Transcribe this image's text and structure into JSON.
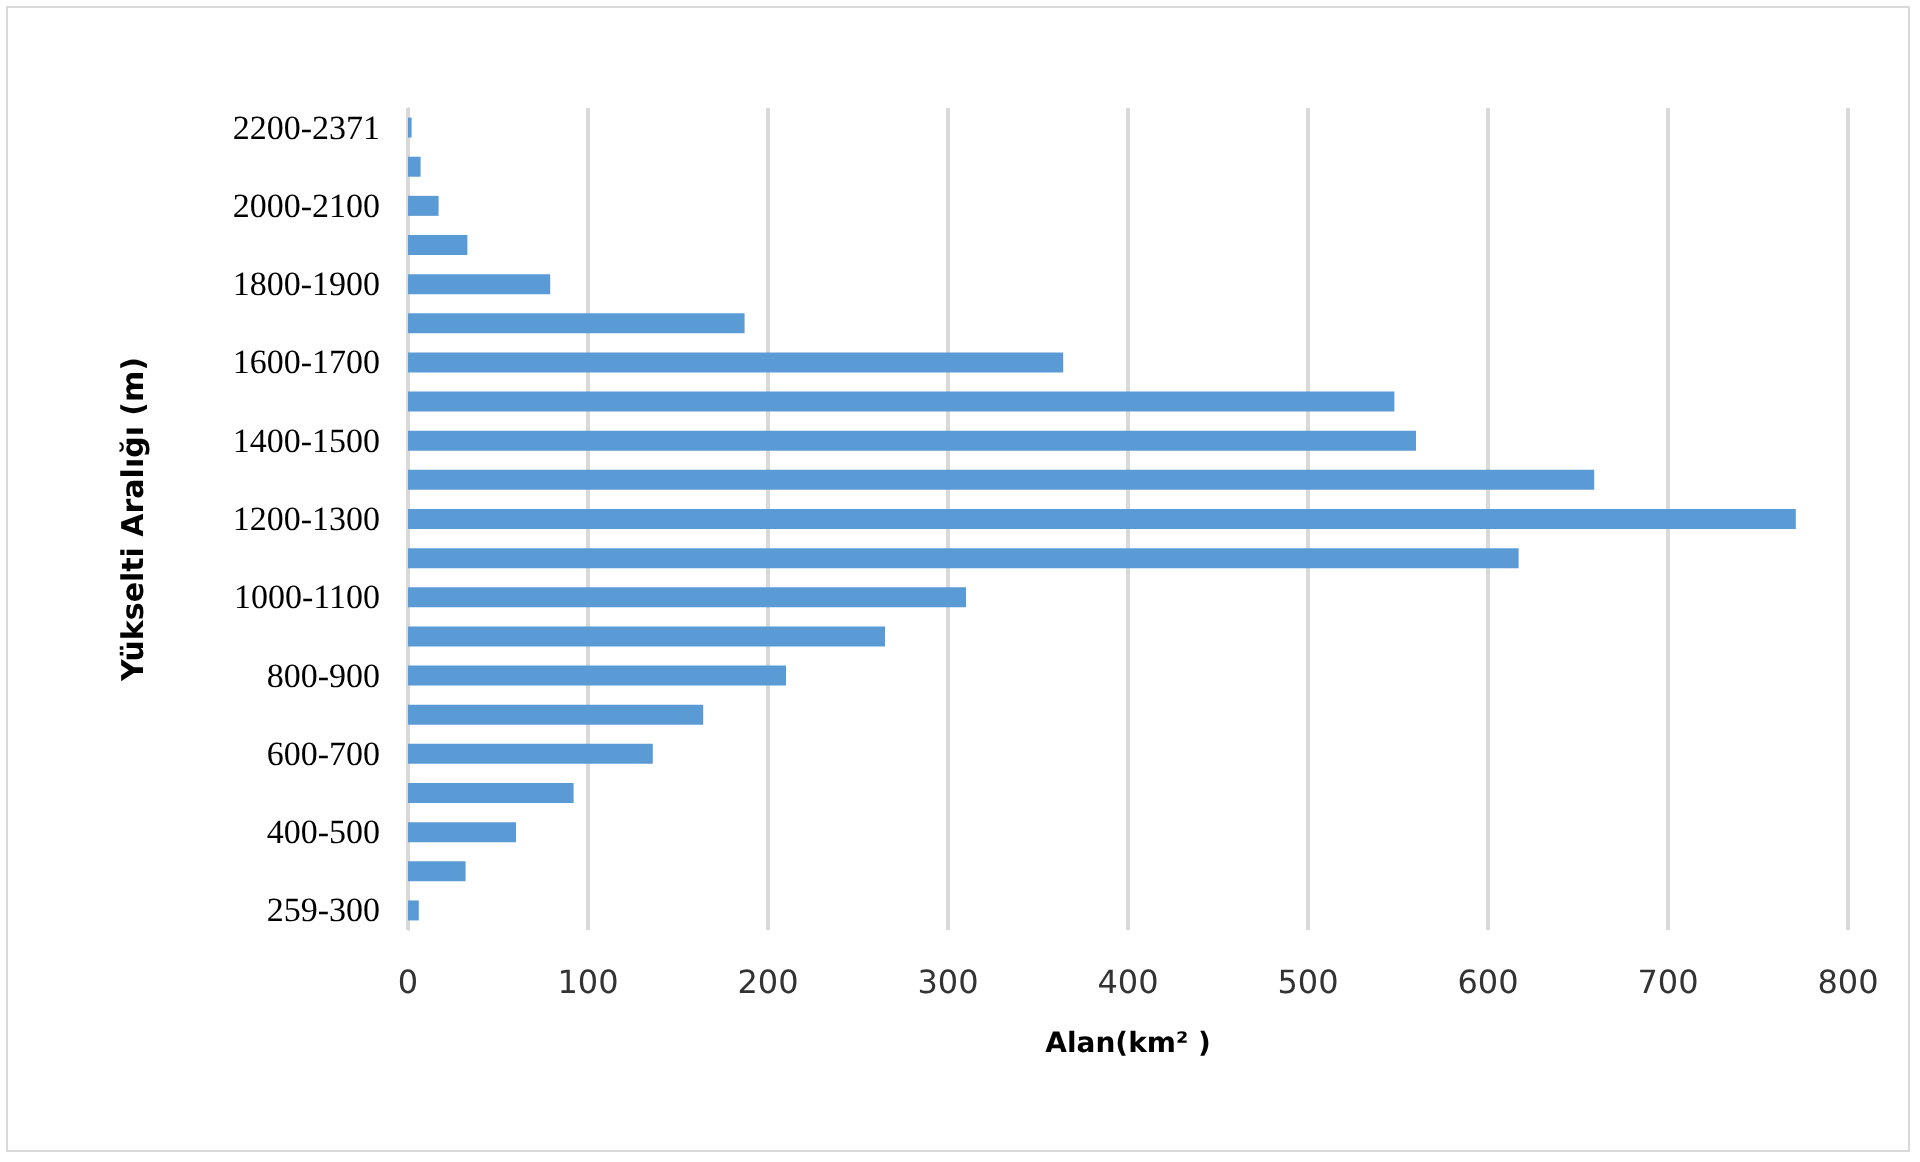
{
  "chart_data": {
    "type": "bar",
    "orientation": "horizontal",
    "xlabel": "Alan(km² )",
    "ylabel": "Yükselti Aralığı (m)",
    "categories": [
      "2200-2371",
      null,
      "2000-2100",
      null,
      "1800-1900",
      null,
      "1600-1700",
      null,
      "1400-1500",
      null,
      "1200-1300",
      null,
      "1000-1100",
      null,
      "800-900",
      null,
      "600-700",
      null,
      "400-500",
      null,
      "259-300"
    ],
    "values": [
      2,
      7,
      17,
      33,
      79,
      187,
      364,
      548,
      560,
      659,
      771,
      617,
      310,
      265,
      210,
      164,
      136,
      92,
      60,
      32,
      6
    ],
    "color": "#5b9bd5",
    "xlim": [
      0,
      800
    ],
    "xticks": [
      0,
      100,
      200,
      300,
      400,
      500,
      600,
      700,
      800
    ],
    "grid": "x"
  }
}
